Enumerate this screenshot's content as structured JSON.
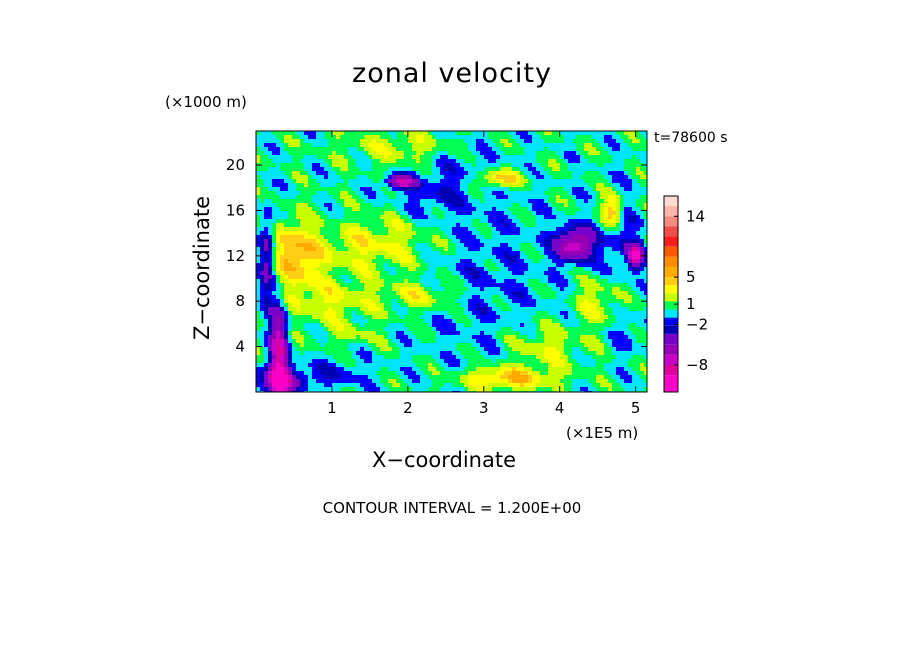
{
  "chart_data": {
    "type": "heatmap",
    "title": "zonal velocity",
    "xlabel": "X−coordinate",
    "ylabel": "Z−coordinate",
    "x_unit_label": "(×1E5 m)",
    "y_unit_label": "(×1000 m)",
    "time_label": "t=78600 s",
    "contour_label": "CONTOUR INTERVAL = 1.200E+00",
    "xlim": [
      0,
      5.15
    ],
    "ylim": [
      0,
      23
    ],
    "x_ticks": [
      "1",
      "2",
      "3",
      "4",
      "5"
    ],
    "y_ticks": [
      "4",
      "8",
      "12",
      "16",
      "20"
    ],
    "colorbar": {
      "tick_labels": [
        "14",
        "5",
        "1",
        "−2",
        "−8"
      ],
      "tick_values": [
        14,
        5,
        1,
        -2,
        -8
      ],
      "levels": [
        17,
        15.5,
        14,
        12.5,
        11,
        9.5,
        8,
        6.5,
        5,
        3.8,
        2.6,
        1.4,
        0.2,
        -1,
        -2.2,
        -3.4,
        -5,
        -6.5,
        -8,
        -9.5,
        -12
      ],
      "colors": [
        "#ffdcd2",
        "#ffb4aa",
        "#f58c82",
        "#f0504b",
        "#ff1e1e",
        "#ff5a00",
        "#ff8c00",
        "#ffaa00",
        "#ffcd14",
        "#ffff00",
        "#c8ff00",
        "#00ff50",
        "#00e6ff",
        "#0000ff",
        "#0000b4",
        "#7800c8",
        "#9600b4",
        "#c800c8",
        "#dc00a0",
        "#ff00c8"
      ]
    },
    "field": {
      "description": "",
      "background_value": 0.2,
      "patches": [
        {
          "x": 3.0,
          "z": 10,
          "rx": 0.9,
          "rz": 8,
          "v": -1.2
        },
        {
          "x": 2.6,
          "z": 20,
          "rx": 0.6,
          "rz": 3,
          "v": -1.2
        },
        {
          "x": 1.5,
          "z": 13,
          "rx": 0.9,
          "rz": 2.5,
          "v": 3
        },
        {
          "x": 1.0,
          "z": 8,
          "rx": 0.6,
          "rz": 2,
          "v": 2.6
        },
        {
          "x": 0.5,
          "z": 12,
          "rx": 0.3,
          "rz": 3,
          "v": 5
        },
        {
          "x": 0.3,
          "z": 3,
          "rx": 0.12,
          "rz": 5,
          "v": -8
        },
        {
          "x": 0.15,
          "z": 12,
          "rx": 0.1,
          "rz": 4,
          "v": -5
        },
        {
          "x": 0.3,
          "z": 1,
          "rx": 0.3,
          "rz": 1.2,
          "v": -6
        },
        {
          "x": 1.9,
          "z": 18.5,
          "rx": 0.2,
          "rz": 0.6,
          "v": -7
        },
        {
          "x": 3.2,
          "z": 18.8,
          "rx": 0.3,
          "rz": 0.8,
          "v": 5
        },
        {
          "x": 2.3,
          "z": 17,
          "rx": 0.4,
          "rz": 1.5,
          "v": -1.2
        },
        {
          "x": 4.2,
          "z": 13,
          "rx": 0.25,
          "rz": 1.5,
          "v": -8
        },
        {
          "x": 5.0,
          "z": 12,
          "rx": 0.1,
          "rz": 1,
          "v": -9
        },
        {
          "x": 4.8,
          "z": 14,
          "rx": 0.25,
          "rz": 4,
          "v": -2.2
        },
        {
          "x": 4.7,
          "z": 16,
          "rx": 0.15,
          "rz": 1.5,
          "v": 6
        },
        {
          "x": 3.8,
          "z": 4,
          "rx": 0.5,
          "rz": 2,
          "v": 2.6
        },
        {
          "x": 3.3,
          "z": 1.2,
          "rx": 0.6,
          "rz": 1,
          "v": 5
        },
        {
          "x": 1.0,
          "z": 1.5,
          "rx": 0.5,
          "rz": 1.2,
          "v": -2
        },
        {
          "x": 1.3,
          "z": 5,
          "rx": 0.4,
          "rz": 1,
          "v": 1.4
        },
        {
          "x": 2.2,
          "z": 8.5,
          "rx": 0.5,
          "rz": 1.3,
          "v": 3
        },
        {
          "x": 0.9,
          "z": 14.5,
          "rx": 0.4,
          "rz": 1.5,
          "v": -0.6
        },
        {
          "x": 4.5,
          "z": 8,
          "rx": 0.3,
          "rz": 2,
          "v": 2.6
        },
        {
          "x": 4.9,
          "z": 5,
          "rx": 0.2,
          "rz": 2,
          "v": -1.2
        },
        {
          "x": 2.0,
          "z": 21.5,
          "rx": 0.8,
          "rz": 1.5,
          "v": 2.6
        }
      ]
    }
  }
}
